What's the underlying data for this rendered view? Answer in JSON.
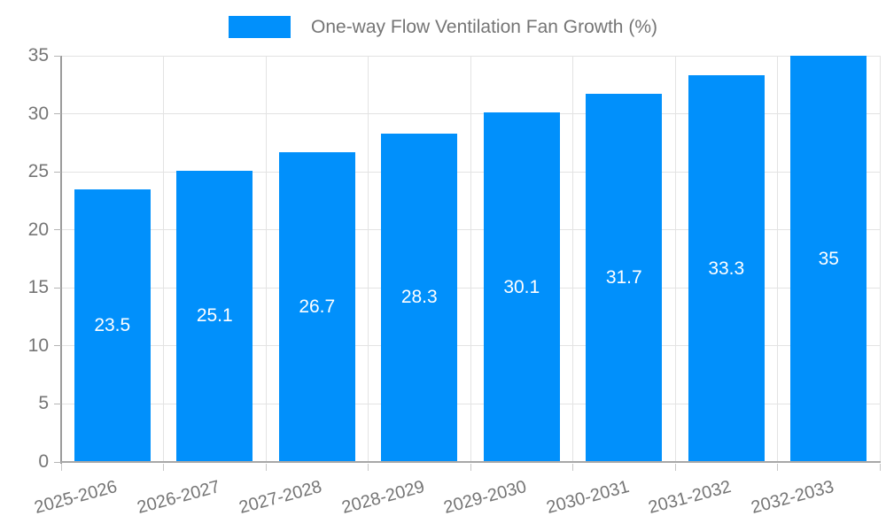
{
  "chart_data": {
    "type": "bar",
    "title": "",
    "xlabel": "",
    "ylabel": "",
    "legend": {
      "label": "One-way Flow Ventilation Fan Growth (%)",
      "position": "top-center"
    },
    "categories": [
      "2025-2026",
      "2026-2027",
      "2027-2028",
      "2028-2029",
      "2029-2030",
      "2030-2031",
      "2031-2032",
      "2032-2033"
    ],
    "series": [
      {
        "name": "One-way Flow Ventilation Fan Growth (%)",
        "values": [
          23.5,
          25.1,
          26.7,
          28.3,
          30.1,
          31.7,
          33.3,
          35
        ]
      }
    ],
    "value_labels": [
      "23.5",
      "25.1",
      "26.7",
      "28.3",
      "30.1",
      "31.7",
      "33.3",
      "35"
    ],
    "ylim": [
      0,
      35
    ],
    "yticks": [
      0,
      5,
      10,
      15,
      20,
      25,
      30,
      35
    ],
    "grid": true,
    "colors": {
      "bar": "#0190fb",
      "value_label": "#ffffff",
      "axis_text": "#757575",
      "gridline": "#e3e3e3",
      "axis_line": "#9b9b9b",
      "background": "#ffffff"
    }
  }
}
